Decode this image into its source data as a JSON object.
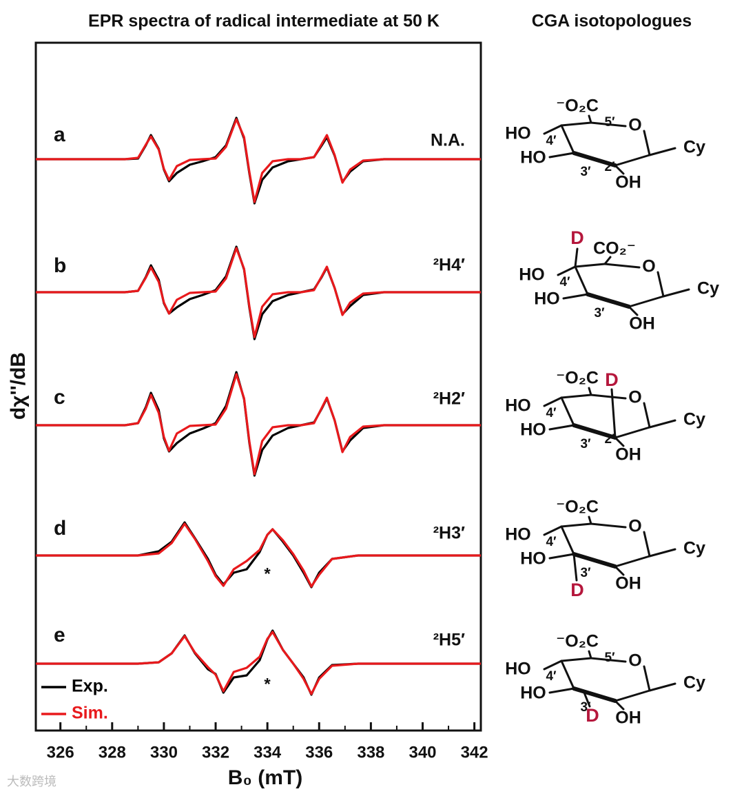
{
  "chart_data": {
    "type": "line",
    "title": "EPR spectra of radical intermediate at 50 K",
    "side_title": "CGA isotopologues",
    "ylabel": "dχ''/dB",
    "xlabel": "B₀ (mT)",
    "xlim": [
      325.05,
      342.25
    ],
    "xticks": [
      326,
      328,
      330,
      332,
      334,
      336,
      338,
      340,
      342
    ],
    "xminorticks": [
      327,
      329,
      331,
      333,
      335,
      337,
      339,
      341
    ],
    "annotations": [
      "*",
      "*"
    ],
    "watermark": "大数跨境",
    "panels": [
      {
        "label": "a",
        "isotope": "N.A.",
        "x": [
          325.05,
          328.5,
          329.0,
          329.3,
          329.5,
          329.8,
          330.0,
          330.2,
          330.5,
          331.0,
          331.5,
          332.0,
          332.4,
          332.8,
          333.1,
          333.3,
          333.5,
          333.8,
          334.2,
          334.8,
          335.3,
          335.8,
          336.1,
          336.3,
          336.6,
          336.9,
          337.2,
          337.7,
          338.5,
          342.25
        ],
        "series": [
          {
            "name": "Exp.",
            "color": "#000000",
            "values": [
              0,
              0,
              0.1,
              2.0,
              3.5,
              1.5,
              -1.5,
              -3.2,
              -2.0,
              -0.8,
              -0.3,
              0.3,
              2.0,
              6.0,
              3.0,
              -2.0,
              -6.4,
              -3.0,
              -1.2,
              -0.3,
              0,
              0.3,
              2.0,
              3.2,
              0.5,
              -3.3,
              -1.8,
              -0.3,
              0,
              0
            ]
          },
          {
            "name": "Sim.",
            "color": "#e8191c",
            "values": [
              0,
              0,
              0.2,
              2.1,
              3.3,
              1.4,
              -1.4,
              -3.0,
              -1.0,
              -0.1,
              0,
              0.1,
              1.8,
              5.8,
              3.2,
              -1.8,
              -6.2,
              -2.0,
              -0.3,
              0,
              0,
              0.3,
              2.2,
              3.5,
              0.6,
              -3.4,
              -1.5,
              -0.2,
              0,
              0
            ]
          }
        ]
      },
      {
        "label": "b",
        "isotope": "²H4′",
        "x": [
          325.05,
          328.5,
          329.0,
          329.3,
          329.5,
          329.8,
          330.0,
          330.2,
          330.5,
          331.0,
          331.5,
          332.0,
          332.4,
          332.8,
          333.1,
          333.3,
          333.5,
          333.8,
          334.2,
          334.8,
          335.3,
          335.8,
          336.1,
          336.3,
          336.6,
          336.9,
          337.2,
          337.7,
          338.5,
          342.25
        ],
        "series": [
          {
            "name": "Exp.",
            "color": "#000000",
            "values": [
              0,
              0,
              0.2,
              2.2,
              3.9,
              1.8,
              -1.6,
              -3.1,
              -2.2,
              -1.0,
              -0.4,
              0.3,
              2.3,
              6.6,
              3.3,
              -2.2,
              -6.8,
              -3.2,
              -1.3,
              -0.4,
              0,
              0.4,
              2.2,
              3.6,
              0.6,
              -3.2,
              -2.0,
              -0.4,
              0,
              0
            ]
          },
          {
            "name": "Sim.",
            "color": "#e8191c",
            "values": [
              0,
              0,
              0.2,
              2.1,
              3.6,
              1.5,
              -1.5,
              -3.1,
              -1.1,
              -0.1,
              0,
              0.1,
              2.0,
              6.4,
              3.4,
              -2.0,
              -6.5,
              -2.1,
              -0.3,
              0,
              0,
              0.3,
              2.3,
              3.7,
              0.6,
              -3.3,
              -1.5,
              -0.2,
              0,
              0
            ]
          }
        ]
      },
      {
        "label": "c",
        "isotope": "²H2′",
        "x": [
          325.05,
          328.5,
          329.0,
          329.3,
          329.5,
          329.8,
          330.0,
          330.2,
          330.5,
          331.0,
          331.5,
          332.0,
          332.4,
          332.8,
          333.1,
          333.3,
          333.5,
          333.8,
          334.2,
          334.8,
          335.3,
          335.8,
          336.1,
          336.3,
          336.6,
          336.9,
          337.2,
          337.7,
          338.5,
          342.25
        ],
        "series": [
          {
            "name": "Exp.",
            "color": "#000000",
            "values": [
              0,
              0,
              0.3,
              2.6,
              4.7,
              2.2,
              -1.9,
              -3.8,
              -2.6,
              -1.2,
              -0.5,
              0.3,
              2.8,
              7.7,
              3.8,
              -2.5,
              -7.3,
              -3.6,
              -1.5,
              -0.4,
              0,
              0.4,
              2.4,
              3.9,
              0.7,
              -3.8,
              -2.2,
              -0.4,
              0,
              0
            ]
          },
          {
            "name": "Sim.",
            "color": "#e8191c",
            "values": [
              0,
              0,
              0.3,
              2.4,
              4.4,
              1.8,
              -1.7,
              -3.7,
              -1.2,
              -0.1,
              0,
              0.1,
              2.4,
              7.4,
              3.9,
              -2.3,
              -7.1,
              -2.3,
              -0.3,
              0,
              0,
              0.3,
              2.5,
              4.0,
              0.7,
              -3.9,
              -1.7,
              -0.2,
              0,
              0
            ]
          }
        ]
      },
      {
        "label": "d",
        "isotope": "²H3′",
        "x": [
          325.05,
          329.0,
          329.8,
          330.3,
          330.8,
          331.2,
          331.7,
          332.0,
          332.3,
          332.7,
          333.2,
          333.7,
          334.0,
          334.2,
          334.6,
          335.0,
          335.4,
          335.7,
          336.0,
          336.5,
          337.5,
          342.25
        ],
        "series": [
          {
            "name": "Exp.",
            "color": "#000000",
            "values": [
              0,
              0,
              0.6,
              2.0,
              4.8,
              2.5,
              -0.5,
              -2.8,
              -4.2,
              -2.5,
              -2.0,
              0.5,
              3.0,
              3.8,
              2.0,
              0,
              -2.5,
              -4.6,
              -2.5,
              -0.5,
              0,
              0
            ]
          },
          {
            "name": "Sim.",
            "color": "#e8191c",
            "values": [
              0,
              0,
              0.3,
              1.8,
              4.6,
              2.4,
              -0.8,
              -3.0,
              -4.4,
              -2.0,
              -0.8,
              0.8,
              3.0,
              3.8,
              2.2,
              0.2,
              -2.2,
              -4.5,
              -2.8,
              -0.5,
              0,
              0
            ]
          }
        ]
      },
      {
        "label": "e",
        "isotope": "²H5′",
        "x": [
          325.05,
          329.0,
          329.8,
          330.3,
          330.8,
          331.2,
          331.7,
          332.0,
          332.3,
          332.7,
          333.2,
          333.7,
          334.0,
          334.2,
          334.6,
          335.0,
          335.4,
          335.7,
          336.0,
          336.5,
          337.5,
          342.25
        ],
        "series": [
          {
            "name": "Exp.",
            "color": "#000000",
            "values": [
              0,
              0,
              0.2,
              1.5,
              4.1,
              1.5,
              -0.8,
              -1.5,
              -4.2,
              -2.0,
              -1.7,
              0.5,
              3.5,
              4.8,
              2.0,
              0,
              -2.0,
              -4.5,
              -2.0,
              -0.2,
              0,
              0
            ]
          },
          {
            "name": "Sim.",
            "color": "#e8191c",
            "values": [
              0,
              0,
              0.2,
              1.5,
              4.0,
              1.6,
              -0.5,
              -1.6,
              -4.0,
              -1.2,
              -0.6,
              1.0,
              3.6,
              4.6,
              2.0,
              0,
              -2.2,
              -4.4,
              -2.2,
              -0.3,
              0,
              0
            ]
          }
        ]
      }
    ]
  },
  "structures": [
    {
      "labels": [
        "⁻O₂C",
        "5′",
        "O",
        "HO",
        "4′",
        "HO",
        "3′",
        "2′",
        "OH",
        "Cy"
      ]
    },
    {
      "labels": [
        "D",
        "CO₂⁻",
        "O",
        "HO",
        "4′",
        "HO",
        "3′",
        "OH",
        "Cy"
      ]
    },
    {
      "labels": [
        "⁻O₂C",
        "D",
        "O",
        "HO",
        "4′",
        "HO",
        "3′",
        "2′",
        "OH",
        "Cy"
      ]
    },
    {
      "labels": [
        "⁻O₂C",
        "O",
        "HO",
        "4′",
        "HO",
        "3′",
        "D",
        "OH",
        "Cy"
      ]
    },
    {
      "labels": [
        "⁻O₂C",
        "5′",
        "O",
        "HO",
        "4′",
        "HO",
        "3′",
        "D",
        "OH",
        "Cy"
      ]
    }
  ]
}
